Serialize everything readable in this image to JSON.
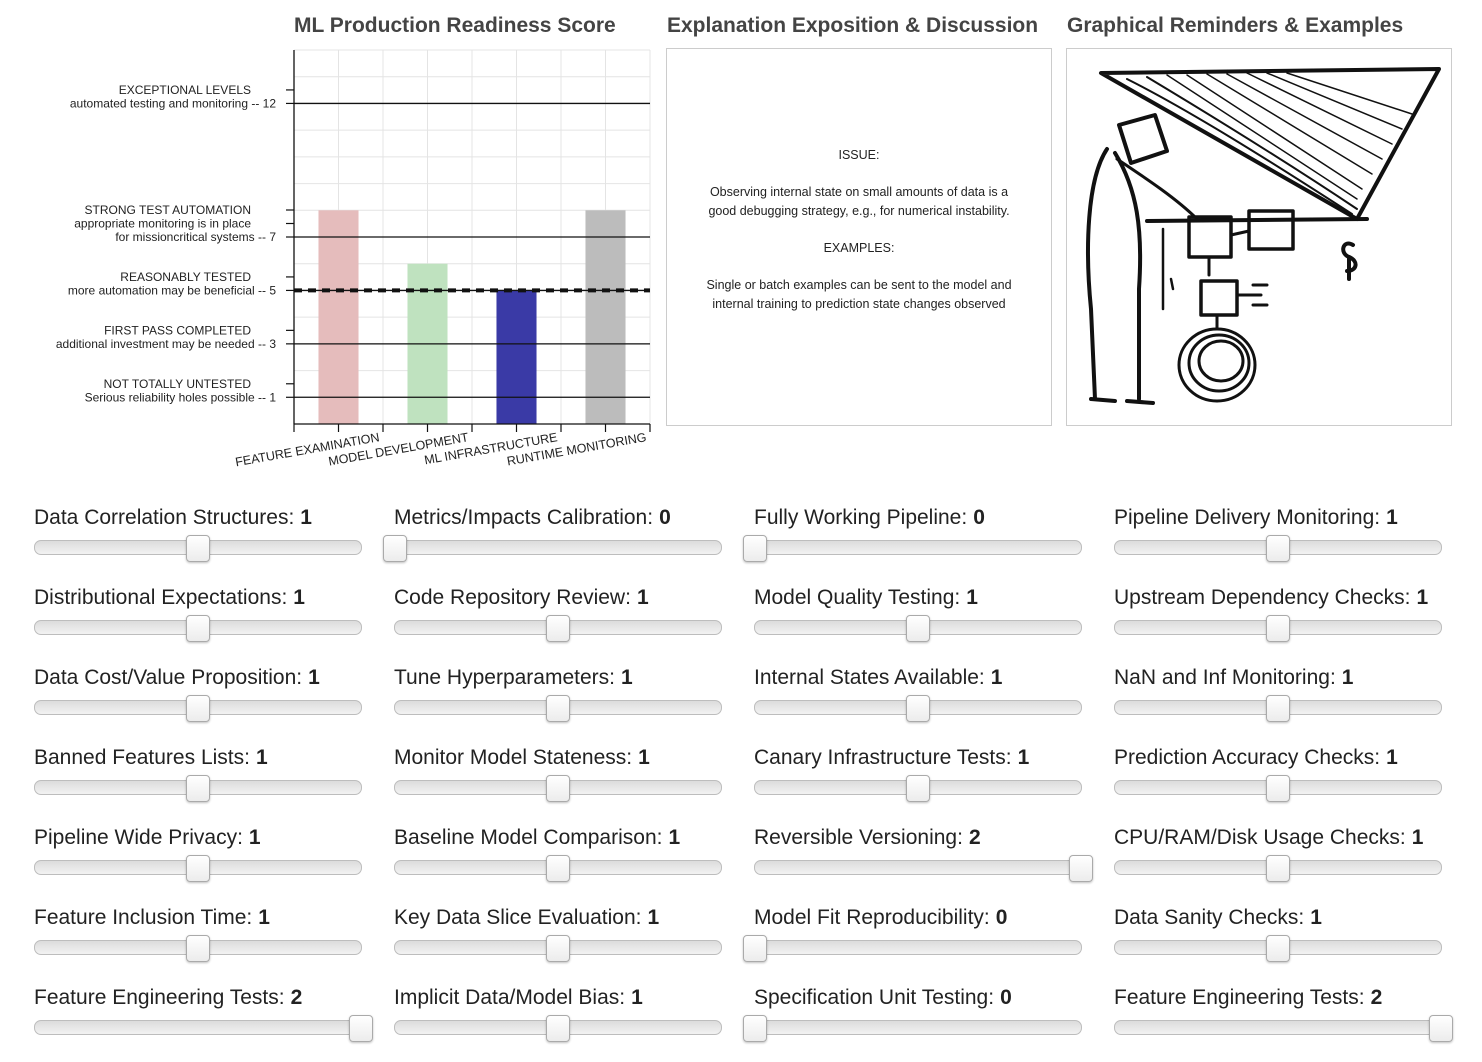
{
  "headers": {
    "chart_title": "ML Production Readiness Score",
    "explanation_title": "Explanation Exposition & Discussion",
    "graphics_title": "Graphical Reminders & Examples"
  },
  "chart_data": {
    "type": "bar",
    "title": "ML Production Readiness Score",
    "categories": [
      "FEATURE EXAMINATION",
      "MODEL DEVELOPMENT",
      "ML INFRASTRUCTURE",
      "RUNTIME MONITORING"
    ],
    "values": [
      8,
      6,
      5,
      8
    ],
    "bar_colors": [
      "#e5bcbc",
      "#bfe2bf",
      "#3a3aa6",
      "#bcbcbc"
    ],
    "ylim": [
      0,
      14
    ],
    "threshold": 5,
    "levels": [
      {
        "value": 12,
        "lines": [
          "EXCEPTIONAL LEVELS",
          "automated testing and monitoring -- 12"
        ]
      },
      {
        "value": 7,
        "lines": [
          "STRONG TEST AUTOMATION",
          "appropriate monitoring is in place",
          "for missioncritical systems -- 7"
        ]
      },
      {
        "value": 5,
        "lines": [
          "REASONABLY TESTED",
          "more automation may be beneficial -- 5"
        ]
      },
      {
        "value": 3,
        "lines": [
          "FIRST PASS COMPLETED",
          "additional investment may be needed -- 3"
        ]
      },
      {
        "value": 1,
        "lines": [
          "NOT TOTALLY UNTESTED",
          "Serious reliability holes possible -- 1"
        ]
      }
    ],
    "grid": true
  },
  "explanation": {
    "issue_heading": "ISSUE:",
    "issue_text_1": "Observing internal state on small amounts of data is a",
    "issue_text_2": "good debugging strategy, e.g., for numerical instability.",
    "examples_heading": "EXAMPLES:",
    "examples_text_1": "Single or batch examples can be sent to the model and",
    "examples_text_2": "internal training to prediction state changes observed"
  },
  "sliders": {
    "max": 2,
    "columns": [
      [
        {
          "label": "Data Correlation Structures:",
          "value": 1
        },
        {
          "label": "Distributional Expectations:",
          "value": 1
        },
        {
          "label": "Data Cost/Value Proposition:",
          "value": 1
        },
        {
          "label": "Banned Features Lists:",
          "value": 1
        },
        {
          "label": "Pipeline Wide Privacy:",
          "value": 1
        },
        {
          "label": "Feature Inclusion Time:",
          "value": 1
        },
        {
          "label": "Feature Engineering Tests:",
          "value": 2
        }
      ],
      [
        {
          "label": "Metrics/Impacts Calibration:",
          "value": 0
        },
        {
          "label": "Code Repository Review:",
          "value": 1
        },
        {
          "label": "Tune Hyperparameters:",
          "value": 1
        },
        {
          "label": "Monitor Model Stateness:",
          "value": 1
        },
        {
          "label": "Baseline Model Comparison:",
          "value": 1
        },
        {
          "label": "Key Data Slice Evaluation:",
          "value": 1
        },
        {
          "label": "Implicit Data/Model Bias:",
          "value": 1
        }
      ],
      [
        {
          "label": "Fully Working Pipeline:",
          "value": 0
        },
        {
          "label": "Model Quality Testing:",
          "value": 1
        },
        {
          "label": "Internal States Available:",
          "value": 1
        },
        {
          "label": "Canary Infrastructure Tests:",
          "value": 1
        },
        {
          "label": "Reversible Versioning:",
          "value": 2
        },
        {
          "label": "Model Fit Reproducibility:",
          "value": 0
        },
        {
          "label": "Specification Unit Testing:",
          "value": 0
        }
      ],
      [
        {
          "label": "Pipeline Delivery Monitoring:",
          "value": 1
        },
        {
          "label": "Upstream Dependency Checks:",
          "value": 1
        },
        {
          "label": "NaN and Inf Monitoring:",
          "value": 1
        },
        {
          "label": "Prediction Accuracy Checks:",
          "value": 1
        },
        {
          "label": "CPU/RAM/Disk Usage Checks:",
          "value": 1
        },
        {
          "label": "Data Sanity Checks:",
          "value": 1
        },
        {
          "label": "Feature Engineering Tests:",
          "value": 2
        }
      ]
    ]
  }
}
